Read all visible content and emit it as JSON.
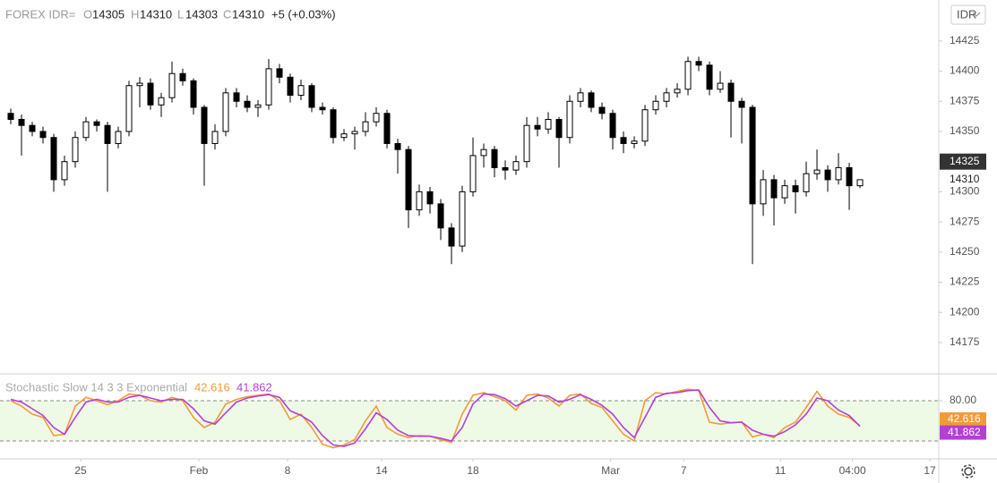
{
  "chart_data": [
    {
      "type": "candlestick",
      "title": "FOREX IDR=",
      "ohlc_letters": [
        "O",
        "H",
        "L",
        "C"
      ],
      "change": "+5 (+0.03%)",
      "currency": "IDR",
      "open": [
        14365,
        14360,
        14355,
        14350,
        14345,
        14310,
        14325,
        14345,
        14358,
        14355,
        14340,
        14350,
        14388,
        14390,
        14372,
        14378,
        14398,
        14392,
        14370,
        14340,
        14350,
        14382,
        14375,
        14370,
        14372,
        14402,
        14395,
        14380,
        14388,
        14370,
        14368,
        14345,
        14348,
        14350,
        14358,
        14365,
        14340,
        14335,
        14285,
        14300,
        14290,
        14270,
        14255,
        14300,
        14330,
        14335,
        14320,
        14318,
        14325,
        14355,
        14352,
        14360,
        14345,
        14375,
        14382,
        14370,
        14365,
        14345,
        14340,
        14342,
        14368,
        14375,
        14382,
        14385,
        14408,
        14405,
        14385,
        14390,
        14375,
        14370,
        14290,
        14310,
        14295,
        14305,
        14300,
        14315,
        14318,
        14310,
        14320,
        14305
      ],
      "high": [
        14369,
        14364,
        14358,
        14354,
        14348,
        14330,
        14350,
        14362,
        14360,
        14358,
        14354,
        14392,
        14395,
        14394,
        14382,
        14408,
        14402,
        14394,
        14372,
        14356,
        14386,
        14386,
        14380,
        14376,
        14410,
        14406,
        14398,
        14393,
        14390,
        14374,
        14370,
        14352,
        14354,
        14366,
        14370,
        14368,
        14344,
        14338,
        14306,
        14304,
        14294,
        14274,
        14305,
        14345,
        14340,
        14338,
        14326,
        14330,
        14362,
        14362,
        14366,
        14362,
        14380,
        14386,
        14384,
        14374,
        14368,
        14350,
        14346,
        14372,
        14380,
        14386,
        14390,
        14412,
        14412,
        14408,
        14400,
        14393,
        14378,
        14372,
        14318,
        14314,
        14310,
        14310,
        14325,
        14335,
        14322,
        14332,
        14324,
        14310
      ],
      "low": [
        14356,
        14330,
        14346,
        14340,
        14300,
        14305,
        14320,
        14342,
        14350,
        14300,
        14336,
        14346,
        14370,
        14368,
        14362,
        14374,
        14388,
        14364,
        14305,
        14335,
        14346,
        14370,
        14366,
        14362,
        14368,
        14390,
        14374,
        14376,
        14366,
        14364,
        14340,
        14342,
        14335,
        14346,
        14354,
        14336,
        14315,
        14270,
        14280,
        14282,
        14260,
        14240,
        14250,
        14296,
        14320,
        14312,
        14310,
        14314,
        14320,
        14346,
        14348,
        14320,
        14340,
        14370,
        14366,
        14360,
        14335,
        14332,
        14336,
        14338,
        14364,
        14370,
        14378,
        14380,
        14400,
        14380,
        14382,
        14345,
        14340,
        14240,
        14280,
        14272,
        14290,
        14282,
        14296,
        14310,
        14300,
        14306,
        14285,
        14303
      ],
      "close": [
        14360,
        14355,
        14350,
        14345,
        14310,
        14325,
        14345,
        14358,
        14355,
        14340,
        14350,
        14388,
        14390,
        14372,
        14378,
        14398,
        14392,
        14370,
        14340,
        14350,
        14382,
        14375,
        14370,
        14372,
        14402,
        14395,
        14380,
        14388,
        14370,
        14368,
        14345,
        14348,
        14350,
        14358,
        14365,
        14340,
        14335,
        14285,
        14300,
        14290,
        14270,
        14255,
        14300,
        14330,
        14335,
        14320,
        14318,
        14325,
        14355,
        14352,
        14360,
        14345,
        14375,
        14382,
        14370,
        14365,
        14345,
        14340,
        14342,
        14368,
        14375,
        14382,
        14385,
        14408,
        14405,
        14385,
        14390,
        14375,
        14370,
        14290,
        14310,
        14295,
        14305,
        14300,
        14315,
        14318,
        14310,
        14320,
        14305,
        14310
      ],
      "up_color": "#ffffff",
      "down_color": "#000000",
      "wick_color": "#000000",
      "ylim": [
        14149,
        14459
      ],
      "yticks": [
        14175,
        14200,
        14225,
        14250,
        14275,
        14300,
        14325,
        14350,
        14375,
        14400,
        14425
      ],
      "markers": [
        14325,
        14310
      ],
      "xlim": [
        -1,
        86.33
      ],
      "xticks": [
        {
          "value": 6.5,
          "label": "25"
        },
        {
          "value": 17.5,
          "label": "Feb"
        },
        {
          "value": 25.75,
          "label": "8"
        },
        {
          "value": 34.5,
          "label": "14"
        },
        {
          "value": 43,
          "label": "18"
        },
        {
          "value": 55.8,
          "label": "Mar"
        },
        {
          "value": 62.6,
          "label": "7"
        },
        {
          "value": 71.6,
          "label": "11"
        },
        {
          "value": 78.3,
          "label": "04:00"
        },
        {
          "value": 85.5,
          "label": "17"
        }
      ]
    },
    {
      "type": "line",
      "title": "Stochastic Slow 14 3 3 Exponential",
      "series": [
        {
          "color": "#f39a38",
          "values": [
            80,
            72,
            60,
            55,
            28,
            30,
            72,
            85,
            80,
            74,
            80,
            90,
            88,
            80,
            78,
            85,
            80,
            55,
            40,
            48,
            75,
            82,
            86,
            88,
            90,
            80,
            52,
            60,
            40,
            15,
            10,
            14,
            22,
            50,
            72,
            40,
            30,
            25,
            28,
            27,
            22,
            18,
            60,
            88,
            92,
            86,
            80,
            66,
            88,
            90,
            84,
            72,
            88,
            90,
            76,
            70,
            50,
            30,
            20,
            80,
            92,
            90,
            94,
            97,
            95,
            48,
            45,
            47,
            48,
            26,
            30,
            25,
            40,
            48,
            70,
            94,
            72,
            60,
            55,
            42.616
          ]
        },
        {
          "color": "#b43fd6",
          "values": [
            82,
            78,
            68,
            58,
            40,
            30,
            55,
            78,
            82,
            78,
            78,
            85,
            88,
            84,
            80,
            82,
            82,
            68,
            50,
            45,
            62,
            78,
            84,
            87,
            89,
            85,
            65,
            58,
            48,
            28,
            14,
            12,
            17,
            38,
            62,
            52,
            36,
            28,
            27,
            27,
            24,
            20,
            40,
            75,
            90,
            89,
            83,
            72,
            80,
            88,
            87,
            78,
            82,
            89,
            82,
            73,
            60,
            40,
            25,
            55,
            85,
            91,
            92,
            95,
            96,
            70,
            50,
            47,
            48,
            36,
            30,
            27,
            34,
            44,
            60,
            84,
            80,
            66,
            58,
            41.862
          ]
        }
      ],
      "bands": [
        20,
        80
      ],
      "band_fill": "#eefae6",
      "ylim": [
        -6.7,
        120
      ],
      "yticks": [
        {
          "value": 80,
          "label": "80.00"
        }
      ]
    }
  ]
}
